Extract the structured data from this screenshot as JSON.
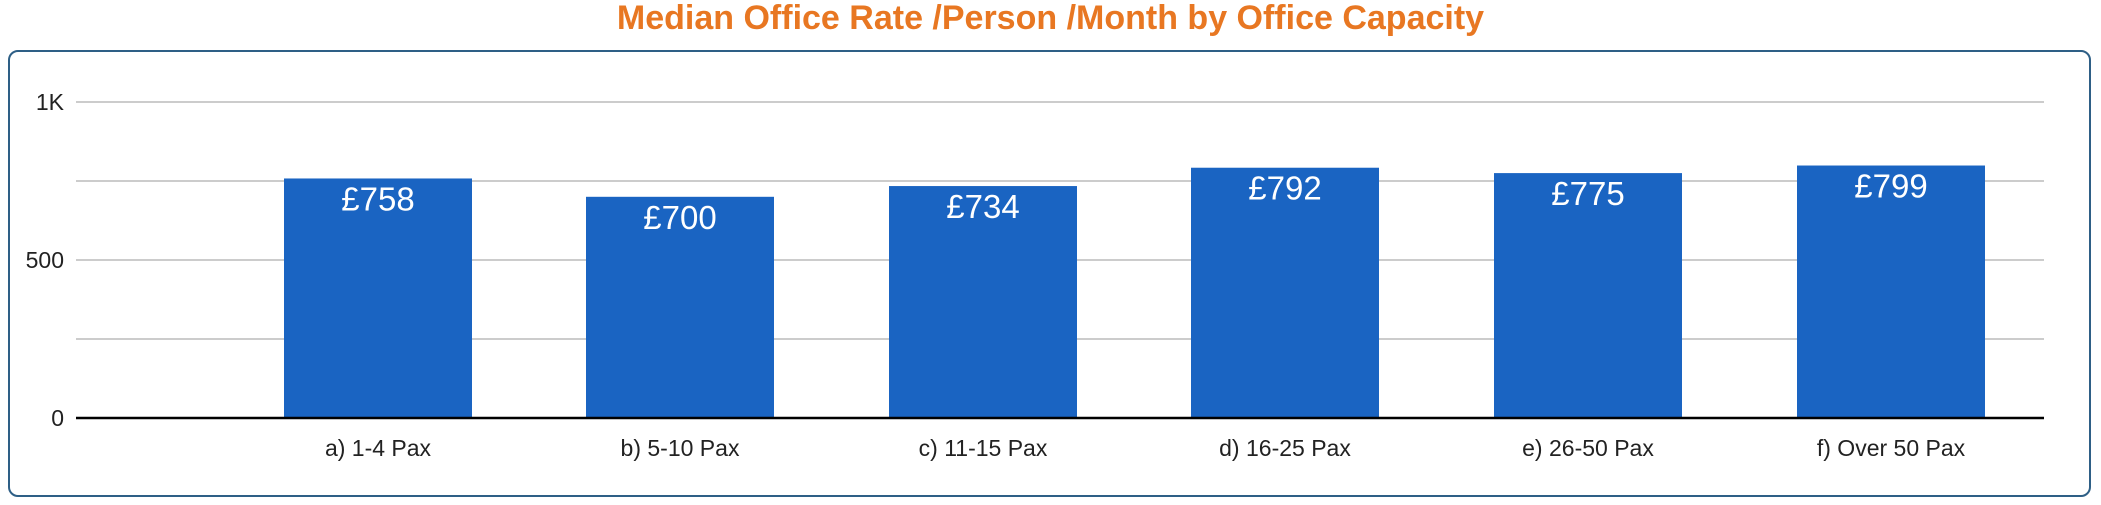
{
  "chart_data": {
    "type": "bar",
    "title": "Median Office Rate /Person /Month by Office Capacity",
    "categories": [
      "a) 1-4 Pax",
      "b) 5-10 Pax",
      "c) 11-15 Pax",
      "d) 16-25 Pax",
      "e) 26-50 Pax",
      "f) Over 50 Pax"
    ],
    "series": [
      {
        "values": [
          758,
          700,
          734,
          792,
          775,
          799
        ],
        "data_labels": [
          "£758",
          "£700",
          "£734",
          "£792",
          "£775",
          "£799"
        ]
      }
    ],
    "ylim": [
      0,
      1000
    ],
    "y_ticks": [
      {
        "value": 0,
        "label": "0"
      },
      {
        "value": 500,
        "label": "500"
      },
      {
        "value": 1000,
        "label": "1K"
      }
    ],
    "y_gridlines": [
      0,
      250,
      500,
      750,
      1000
    ],
    "xlabel": "",
    "ylabel": "",
    "grid": true,
    "legend": "none",
    "colors": {
      "title": "#e87722",
      "bar": "#1a64c2",
      "panel_border": "#2e5f86",
      "gridline": "#cccccc",
      "axis": "#000000",
      "data_label": "#ffffff"
    }
  }
}
